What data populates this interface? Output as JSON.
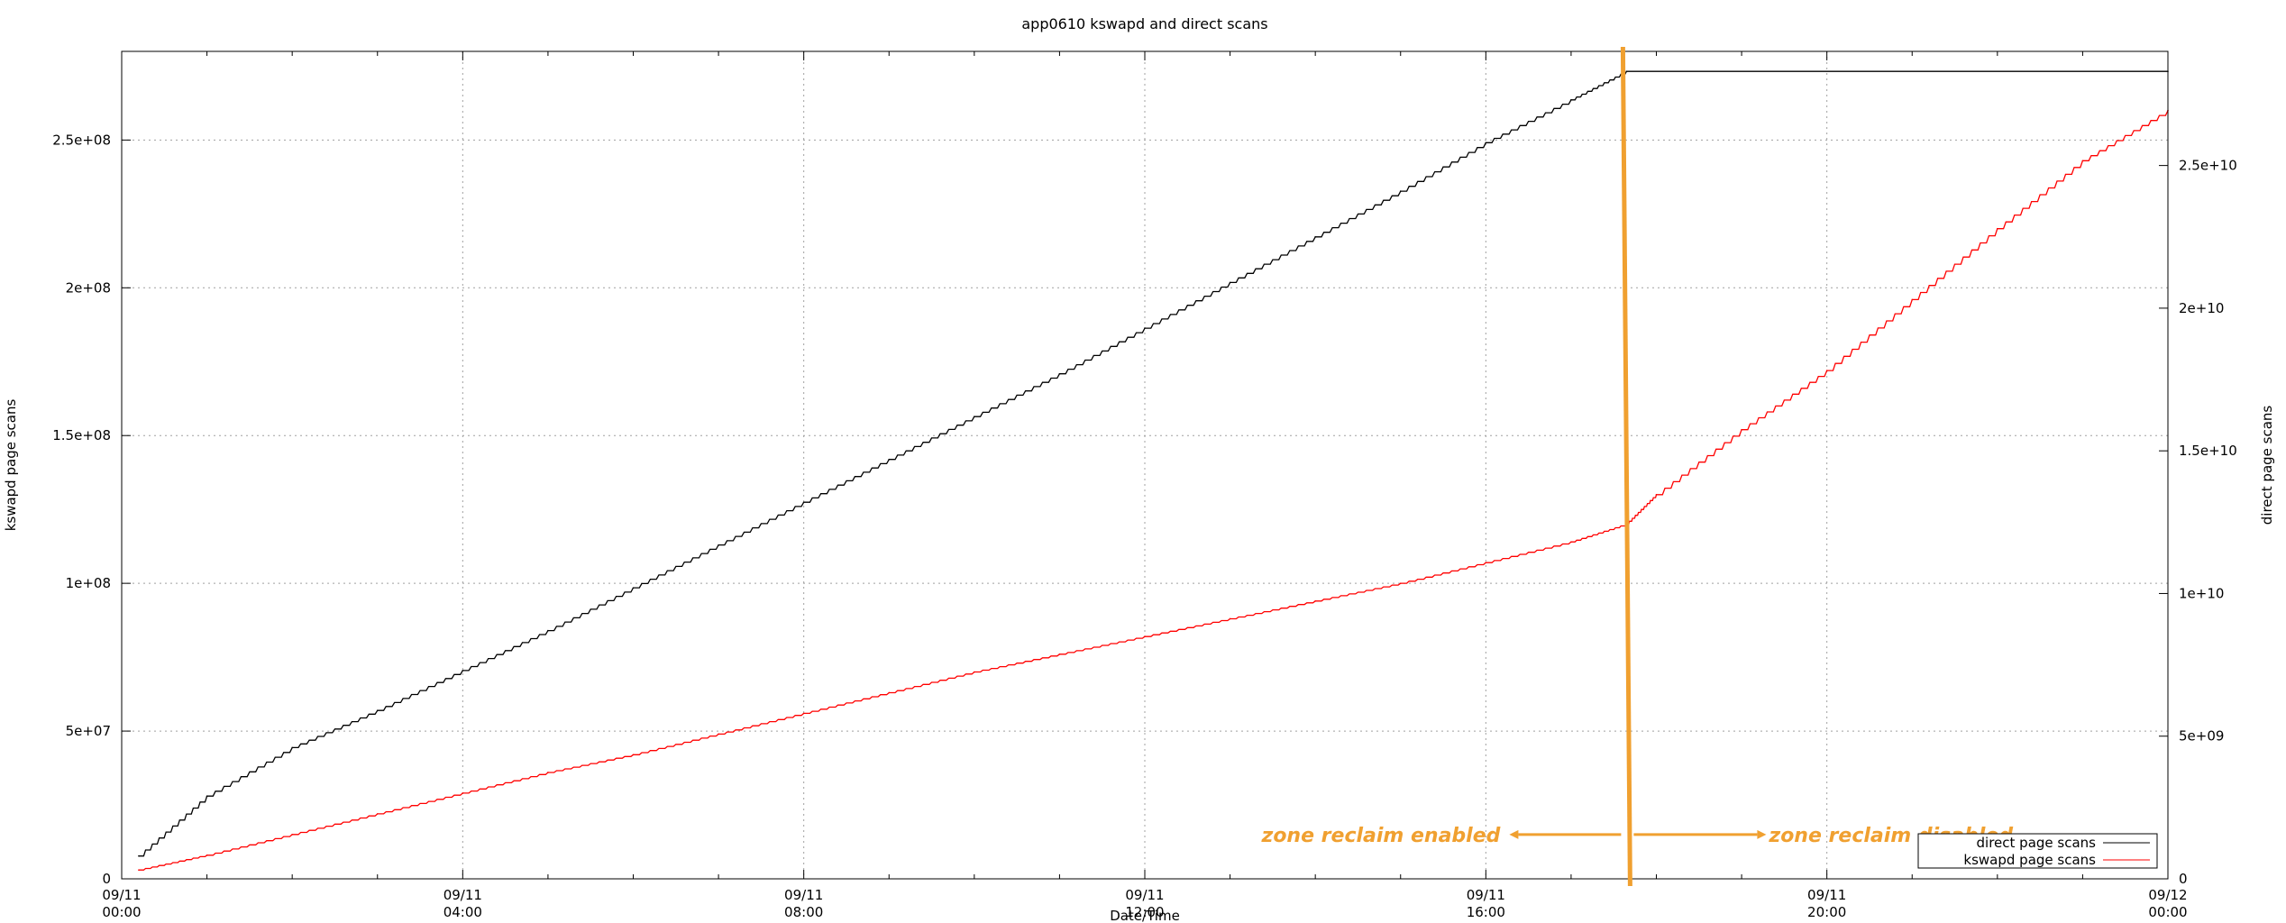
{
  "chart_data": {
    "type": "line",
    "title": "app0610 kswapd and direct scans",
    "xlabel": "Date/Time",
    "ylabel_left": "kswapd page scans",
    "ylabel_right": "direct page scans",
    "x_range": [
      "09/11 00:00",
      "09/12 00:00"
    ],
    "ylim_left": [
      0,
      280000000
    ],
    "ylim_right": [
      0,
      29000000000
    ],
    "grid": true,
    "legend_position": "bottom-right",
    "x_ticks": [
      {
        "date": "09/11",
        "time": "00:00",
        "hour": 0
      },
      {
        "date": "09/11",
        "time": "04:00",
        "hour": 4
      },
      {
        "date": "09/11",
        "time": "08:00",
        "hour": 8
      },
      {
        "date": "09/11",
        "time": "12:00",
        "hour": 12
      },
      {
        "date": "09/11",
        "time": "16:00",
        "hour": 16
      },
      {
        "date": "09/11",
        "time": "20:00",
        "hour": 20
      },
      {
        "date": "09/12",
        "time": "00:00",
        "hour": 24
      }
    ],
    "y_ticks_left": [
      {
        "label": "0",
        "value": 0
      },
      {
        "label": "5e+07",
        "value": 50000000
      },
      {
        "label": "1e+08",
        "value": 100000000
      },
      {
        "label": "1.5e+08",
        "value": 150000000
      },
      {
        "label": "2e+08",
        "value": 200000000
      },
      {
        "label": "2.5e+08",
        "value": 250000000
      }
    ],
    "y_ticks_right": [
      {
        "label": "0",
        "value": 0
      },
      {
        "label": "5e+09",
        "value": 5000000000
      },
      {
        "label": "1e+10",
        "value": 10000000000
      },
      {
        "label": "1.5e+10",
        "value": 15000000000
      },
      {
        "label": "2e+10",
        "value": 20000000000
      },
      {
        "label": "2.5e+10",
        "value": 25000000000
      }
    ],
    "series": [
      {
        "name": "direct page scans",
        "axis": "right",
        "color": "#000000",
        "points": [
          {
            "hour": 0.2,
            "value": 800000000
          },
          {
            "hour": 1,
            "value": 2900000000
          },
          {
            "hour": 2,
            "value": 4600000000
          },
          {
            "hour": 3,
            "value": 5900000000
          },
          {
            "hour": 4,
            "value": 7300000000
          },
          {
            "hour": 5,
            "value": 8700000000
          },
          {
            "hour": 6,
            "value": 10200000000
          },
          {
            "hour": 7,
            "value": 11700000000
          },
          {
            "hour": 8,
            "value": 13200000000
          },
          {
            "hour": 9,
            "value": 14700000000
          },
          {
            "hour": 10,
            "value": 16200000000
          },
          {
            "hour": 11,
            "value": 17700000000
          },
          {
            "hour": 12,
            "value": 19300000000
          },
          {
            "hour": 13,
            "value": 20900000000
          },
          {
            "hour": 14,
            "value": 22500000000
          },
          {
            "hour": 15,
            "value": 24100000000
          },
          {
            "hour": 16,
            "value": 25800000000
          },
          {
            "hour": 17,
            "value": 27300000000
          },
          {
            "hour": 17.65,
            "value": 28300000000
          },
          {
            "hour": 24,
            "value": 28300000000
          }
        ]
      },
      {
        "name": "kswapd page scans",
        "axis": "left",
        "color": "#ff0000",
        "points": [
          {
            "hour": 0.2,
            "value": 3000000
          },
          {
            "hour": 1,
            "value": 8000000
          },
          {
            "hour": 2,
            "value": 15000000
          },
          {
            "hour": 3,
            "value": 22000000
          },
          {
            "hour": 4,
            "value": 29000000
          },
          {
            "hour": 5,
            "value": 36000000
          },
          {
            "hour": 6,
            "value": 42000000
          },
          {
            "hour": 7,
            "value": 49000000
          },
          {
            "hour": 8,
            "value": 56000000
          },
          {
            "hour": 9,
            "value": 63000000
          },
          {
            "hour": 10,
            "value": 70000000
          },
          {
            "hour": 11,
            "value": 76000000
          },
          {
            "hour": 12,
            "value": 82000000
          },
          {
            "hour": 13,
            "value": 88000000
          },
          {
            "hour": 14,
            "value": 94000000
          },
          {
            "hour": 15,
            "value": 100000000
          },
          {
            "hour": 16,
            "value": 107000000
          },
          {
            "hour": 17,
            "value": 114000000
          },
          {
            "hour": 17.65,
            "value": 120000000
          },
          {
            "hour": 18,
            "value": 130000000
          },
          {
            "hour": 19,
            "value": 152000000
          },
          {
            "hour": 20,
            "value": 172000000
          },
          {
            "hour": 21,
            "value": 196000000
          },
          {
            "hour": 22,
            "value": 220000000
          },
          {
            "hour": 23,
            "value": 243000000
          },
          {
            "hour": 24,
            "value": 260000000
          }
        ]
      }
    ],
    "annotations": {
      "marker_hour": 17.65,
      "marker_color": "#f0a030",
      "left_text": "zone reclaim enabled",
      "right_text": "zone reclaim disabled",
      "annotation_value_left_axis": 15000000
    }
  }
}
